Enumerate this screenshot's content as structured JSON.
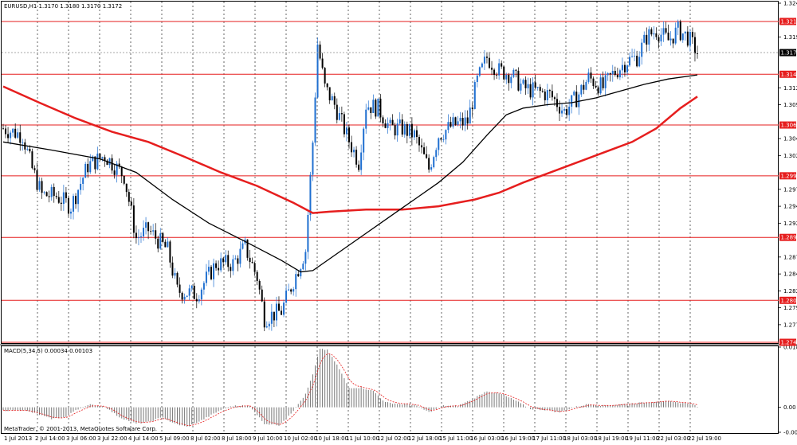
{
  "chart_header": "EURUSD,H1  1.3170 1.3180 1.3170 1.3172",
  "indicator_header": "MACD(5,34,5) 0.00034 0.00103",
  "copyright": "MetaTrader, © 2001-2013, MetaQuotes Software Corp.",
  "current_price_label": "1.3172",
  "colors": {
    "bull": "#1f6fd0",
    "bear": "#000000",
    "ma_fast": "#000000",
    "ma_slow": "#e61e1e",
    "level": "#e61e1e",
    "macd_bar": "#777777",
    "macd_signal": "#e61e1e",
    "level_label_bg": "#e61e1e"
  },
  "chart_data": [
    {
      "type": "candlestick",
      "symbol": "EURUSD",
      "timeframe": "H1",
      "ylim": [
        1.2744,
        1.3245
      ],
      "y_ticks": [
        "1.3245",
        "1.3195",
        "1.3170",
        "1.3145",
        "1.3120",
        "1.3095",
        "1.3070",
        "1.3045",
        "1.3020",
        "1.2995",
        "1.2970",
        "1.2945",
        "1.2920",
        "1.2895",
        "1.2870",
        "1.2845",
        "1.2820",
        "1.2795",
        "1.2770"
      ],
      "x_labels": [
        "1 Jul 2013",
        "2 Jul 14:00",
        "3 Jul 06:00",
        "3 Jul 22:00",
        "4 Jul 14:00",
        "5 Jul 09:00",
        "8 Jul 02:00",
        "8 Jul 18:00",
        "9 Jul 10:00",
        "10 Jul 02:00",
        "10 Jul 18:00",
        "11 Jul 10:00",
        "12 Jul 02:00",
        "12 Jul 18:00",
        "15 Jul 11:00",
        "16 Jul 03:00",
        "16 Jul 19:00",
        "17 Jul 11:00",
        "18 Jul 03:00",
        "18 Jul 19:00",
        "19 Jul 11:00",
        "22 Jul 03:00",
        "22 Jul 19:00"
      ],
      "levels": [
        {
          "value": 1.3218,
          "label": "1.3218"
        },
        {
          "value": 1.314,
          "label": "1.3140"
        },
        {
          "value": 1.3065,
          "label": "1.3065"
        },
        {
          "value": 1.299,
          "label": "1.2990"
        },
        {
          "value": 1.2899,
          "label": "1.2899"
        },
        {
          "value": 1.2806,
          "label": "1.2806"
        },
        {
          "value": 1.2744,
          "label": "1.2744"
        }
      ],
      "current_price": 1.3172,
      "close_path": [
        {
          "i": 0,
          "v": 1.306
        },
        {
          "i": 8,
          "v": 1.305
        },
        {
          "i": 12,
          "v": 1.3
        },
        {
          "i": 16,
          "v": 1.2962
        },
        {
          "i": 22,
          "v": 1.296
        },
        {
          "i": 28,
          "v": 1.2945
        },
        {
          "i": 35,
          "v": 1.3005
        },
        {
          "i": 42,
          "v": 1.302
        },
        {
          "i": 50,
          "v": 1.299
        },
        {
          "i": 55,
          "v": 1.2898
        },
        {
          "i": 60,
          "v": 1.291
        },
        {
          "i": 68,
          "v": 1.288
        },
        {
          "i": 72,
          "v": 1.282
        },
        {
          "i": 80,
          "v": 1.2815
        },
        {
          "i": 88,
          "v": 1.286
        },
        {
          "i": 95,
          "v": 1.286
        },
        {
          "i": 100,
          "v": 1.2885
        },
        {
          "i": 105,
          "v": 1.284
        },
        {
          "i": 108,
          "v": 1.278
        },
        {
          "i": 115,
          "v": 1.279
        },
        {
          "i": 120,
          "v": 1.2835
        },
        {
          "i": 125,
          "v": 1.288
        },
        {
          "i": 128,
          "v": 1.304
        },
        {
          "i": 130,
          "v": 1.3185
        },
        {
          "i": 133,
          "v": 1.312
        },
        {
          "i": 137,
          "v": 1.3095
        },
        {
          "i": 142,
          "v": 1.305
        },
        {
          "i": 147,
          "v": 1.301
        },
        {
          "i": 150,
          "v": 1.3095
        },
        {
          "i": 155,
          "v": 1.309
        },
        {
          "i": 160,
          "v": 1.306
        },
        {
          "i": 165,
          "v": 1.306
        },
        {
          "i": 170,
          "v": 1.305
        },
        {
          "i": 176,
          "v": 1.3
        },
        {
          "i": 180,
          "v": 1.305
        },
        {
          "i": 186,
          "v": 1.3065
        },
        {
          "i": 192,
          "v": 1.307
        },
        {
          "i": 196,
          "v": 1.313
        },
        {
          "i": 200,
          "v": 1.3165
        },
        {
          "i": 205,
          "v": 1.3145
        },
        {
          "i": 210,
          "v": 1.314
        },
        {
          "i": 215,
          "v": 1.312
        },
        {
          "i": 220,
          "v": 1.3115
        },
        {
          "i": 226,
          "v": 1.311
        },
        {
          "i": 232,
          "v": 1.3085
        },
        {
          "i": 237,
          "v": 1.3105
        },
        {
          "i": 242,
          "v": 1.3135
        },
        {
          "i": 248,
          "v": 1.312
        },
        {
          "i": 252,
          "v": 1.314
        },
        {
          "i": 258,
          "v": 1.316
        },
        {
          "i": 262,
          "v": 1.3165
        },
        {
          "i": 266,
          "v": 1.3195
        },
        {
          "i": 270,
          "v": 1.3205
        },
        {
          "i": 275,
          "v": 1.319
        },
        {
          "i": 279,
          "v": 1.3205
        },
        {
          "i": 283,
          "v": 1.3195
        },
        {
          "i": 287,
          "v": 1.3172
        }
      ],
      "ma_fast_path": [
        {
          "i": 0,
          "v": 1.304
        },
        {
          "i": 20,
          "v": 1.3028
        },
        {
          "i": 40,
          "v": 1.3015
        },
        {
          "i": 55,
          "v": 1.2995
        },
        {
          "i": 70,
          "v": 1.2955
        },
        {
          "i": 85,
          "v": 1.292
        },
        {
          "i": 100,
          "v": 1.2893
        },
        {
          "i": 115,
          "v": 1.2865
        },
        {
          "i": 123,
          "v": 1.2848
        },
        {
          "i": 128,
          "v": 1.285
        },
        {
          "i": 140,
          "v": 1.288
        },
        {
          "i": 150,
          "v": 1.2905
        },
        {
          "i": 160,
          "v": 1.293
        },
        {
          "i": 170,
          "v": 1.2955
        },
        {
          "i": 180,
          "v": 1.298
        },
        {
          "i": 190,
          "v": 1.301
        },
        {
          "i": 200,
          "v": 1.305
        },
        {
          "i": 208,
          "v": 1.308
        },
        {
          "i": 215,
          "v": 1.309
        },
        {
          "i": 225,
          "v": 1.3095
        },
        {
          "i": 235,
          "v": 1.3098
        },
        {
          "i": 245,
          "v": 1.3105
        },
        {
          "i": 255,
          "v": 1.3115
        },
        {
          "i": 265,
          "v": 1.3125
        },
        {
          "i": 275,
          "v": 1.3133
        },
        {
          "i": 287,
          "v": 1.3139
        }
      ],
      "ma_slow_path": [
        {
          "i": 0,
          "v": 1.3122
        },
        {
          "i": 15,
          "v": 1.3098
        },
        {
          "i": 30,
          "v": 1.3075
        },
        {
          "i": 45,
          "v": 1.3055
        },
        {
          "i": 60,
          "v": 1.304
        },
        {
          "i": 75,
          "v": 1.3018
        },
        {
          "i": 90,
          "v": 1.2995
        },
        {
          "i": 105,
          "v": 1.2975
        },
        {
          "i": 120,
          "v": 1.295
        },
        {
          "i": 128,
          "v": 1.2935
        },
        {
          "i": 135,
          "v": 1.2937
        },
        {
          "i": 150,
          "v": 1.294
        },
        {
          "i": 165,
          "v": 1.294
        },
        {
          "i": 180,
          "v": 1.2945
        },
        {
          "i": 195,
          "v": 1.2955
        },
        {
          "i": 205,
          "v": 1.2965
        },
        {
          "i": 215,
          "v": 1.298
        },
        {
          "i": 230,
          "v": 1.3
        },
        {
          "i": 245,
          "v": 1.302
        },
        {
          "i": 260,
          "v": 1.304
        },
        {
          "i": 270,
          "v": 1.306
        },
        {
          "i": 280,
          "v": 1.309
        },
        {
          "i": 287,
          "v": 1.3107
        }
      ]
    },
    {
      "type": "bar",
      "name": "MACD(5,34,5)",
      "ylim": [
        -0.00764,
        0.01843
      ],
      "y_ticks": [
        "0.01843",
        "0.00",
        "-0.00764"
      ],
      "hist_path": [
        {
          "i": 0,
          "v": -0.001
        },
        {
          "i": 8,
          "v": -0.0008
        },
        {
          "i": 14,
          "v": -0.002
        },
        {
          "i": 20,
          "v": -0.0035
        },
        {
          "i": 26,
          "v": -0.003
        },
        {
          "i": 30,
          "v": -0.0008
        },
        {
          "i": 36,
          "v": 0.0008
        },
        {
          "i": 42,
          "v": 0.0002
        },
        {
          "i": 48,
          "v": -0.003
        },
        {
          "i": 55,
          "v": -0.005
        },
        {
          "i": 60,
          "v": -0.0045
        },
        {
          "i": 66,
          "v": -0.003
        },
        {
          "i": 70,
          "v": -0.0048
        },
        {
          "i": 76,
          "v": -0.006
        },
        {
          "i": 82,
          "v": -0.004
        },
        {
          "i": 90,
          "v": -0.0008
        },
        {
          "i": 96,
          "v": 0.0006
        },
        {
          "i": 102,
          "v": 0.0004
        },
        {
          "i": 108,
          "v": -0.005
        },
        {
          "i": 114,
          "v": -0.0055
        },
        {
          "i": 120,
          "v": -0.001
        },
        {
          "i": 125,
          "v": 0.004
        },
        {
          "i": 128,
          "v": 0.01
        },
        {
          "i": 131,
          "v": 0.018
        },
        {
          "i": 134,
          "v": 0.0175
        },
        {
          "i": 138,
          "v": 0.013
        },
        {
          "i": 143,
          "v": 0.006
        },
        {
          "i": 148,
          "v": 0.006
        },
        {
          "i": 153,
          "v": 0.005
        },
        {
          "i": 158,
          "v": 0.0015
        },
        {
          "i": 164,
          "v": 0.001
        },
        {
          "i": 170,
          "v": 0.0008
        },
        {
          "i": 176,
          "v": -0.0015
        },
        {
          "i": 182,
          "v": 0.0005
        },
        {
          "i": 188,
          "v": 0.0004
        },
        {
          "i": 194,
          "v": 0.0025
        },
        {
          "i": 200,
          "v": 0.005
        },
        {
          "i": 206,
          "v": 0.004
        },
        {
          "i": 212,
          "v": 0.002
        },
        {
          "i": 218,
          "v": -0.0005
        },
        {
          "i": 224,
          "v": -0.0008
        },
        {
          "i": 230,
          "v": -0.0015
        },
        {
          "i": 236,
          "v": 0.0
        },
        {
          "i": 242,
          "v": 0.001
        },
        {
          "i": 248,
          "v": 0.0005
        },
        {
          "i": 254,
          "v": 0.0008
        },
        {
          "i": 260,
          "v": 0.0012
        },
        {
          "i": 266,
          "v": 0.0015
        },
        {
          "i": 272,
          "v": 0.002
        },
        {
          "i": 278,
          "v": 0.0015
        },
        {
          "i": 284,
          "v": 0.0012
        },
        {
          "i": 287,
          "v": 0.0003
        }
      ]
    }
  ]
}
